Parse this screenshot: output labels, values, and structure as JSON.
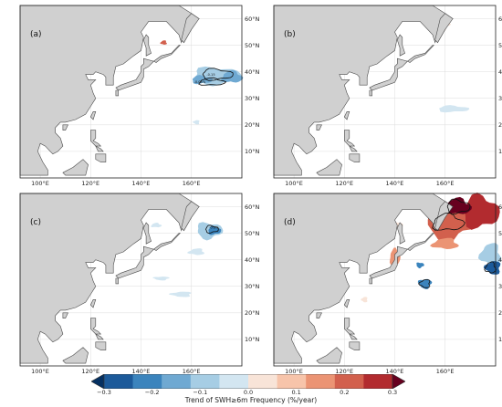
{
  "figure": {
    "panels": [
      {
        "id": "a",
        "label": "(a)",
        "show_lat_labels": true,
        "show_lon_labels": true,
        "contour_labels": [
          "-0.15",
          "-0.05%"
        ]
      },
      {
        "id": "b",
        "label": "(b)",
        "show_lat_labels": true,
        "show_lon_labels": true,
        "contour_labels": []
      },
      {
        "id": "c",
        "label": "(c)",
        "show_lat_labels": true,
        "show_lon_labels": true,
        "contour_labels": [
          "-0.1%"
        ]
      },
      {
        "id": "d",
        "label": "(d)",
        "show_lat_labels": true,
        "show_lon_labels": true,
        "contour_labels": []
      }
    ],
    "lon_ticks": [
      "100°E",
      "120°E",
      "140°E",
      "160°E"
    ],
    "lat_ticks": [
      "10°N",
      "20°N",
      "30°N",
      "40°N",
      "50°N",
      "60°N"
    ],
    "map_extent": {
      "lon": [
        92,
        180
      ],
      "lat": [
        0,
        65
      ]
    },
    "colorbar": {
      "label": "Trend of SWH≥6m Frequency (%/year)",
      "ticks": [
        "−0.3",
        "−0.2",
        "−0.1",
        "0.0",
        "0.1",
        "0.2",
        "0.3"
      ],
      "colors": [
        "#053061",
        "#1c5a9a",
        "#3b84bd",
        "#6fa9d2",
        "#a6cde4",
        "#d3e6f1",
        "#f8e4d8",
        "#f7c4aa",
        "#eb9474",
        "#d2604d",
        "#b22b2f",
        "#67001f"
      ],
      "extend": "both"
    },
    "land_color": "#d0d0d0",
    "coast_color": "#4a4a4a",
    "grid_color": "#dcdcdc"
  }
}
